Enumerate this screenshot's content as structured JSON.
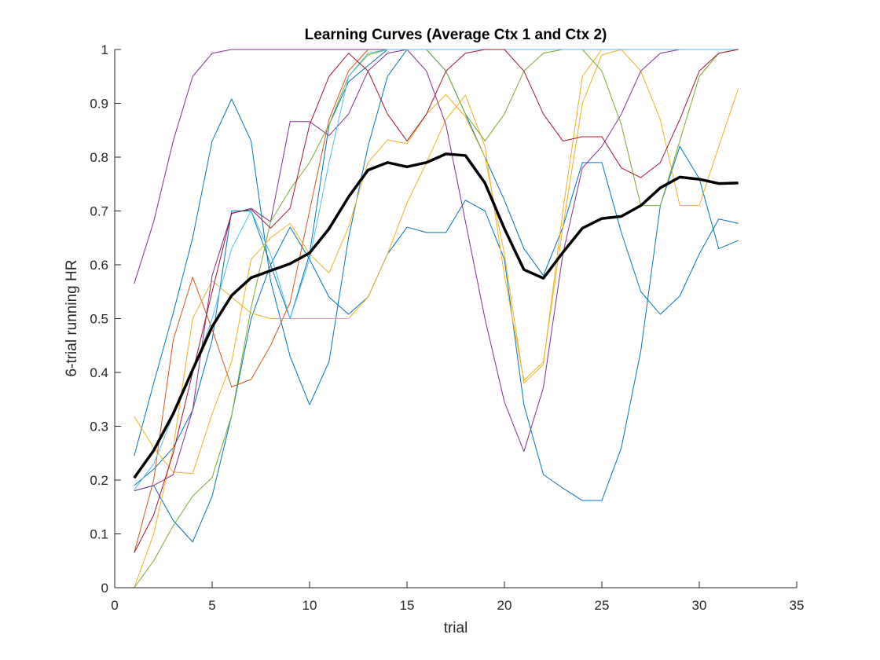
{
  "chart_data": {
    "type": "line",
    "title": "Learning Curves (Average Ctx 1 and Ctx 2)",
    "xlabel": "trial",
    "ylabel": "6-trial running HR",
    "xlim": [
      0,
      35
    ],
    "ylim": [
      0,
      1
    ],
    "xticks": [
      0,
      5,
      10,
      15,
      20,
      25,
      30,
      35
    ],
    "xtick_labels": [
      "0",
      "5",
      "10",
      "15",
      "20",
      "25",
      "30",
      "35"
    ],
    "yticks": [
      0,
      0.1,
      0.2,
      0.3,
      0.4,
      0.5,
      0.6,
      0.7,
      0.8,
      0.9,
      1
    ],
    "ytick_labels": [
      "0",
      "0.1",
      "0.2",
      "0.3",
      "0.4",
      "0.5",
      "0.6",
      "0.7",
      "0.8",
      "0.9",
      "1"
    ],
    "grid": false,
    "legend": false,
    "x": [
      1,
      2,
      3,
      4,
      5,
      6,
      7,
      8,
      9,
      10,
      11,
      12,
      13,
      14,
      15,
      16,
      17,
      18,
      19,
      20,
      21,
      22,
      23,
      24,
      25,
      26,
      27,
      28,
      29,
      30,
      31,
      32
    ],
    "series": [
      {
        "color": "#0072BD",
        "width": 1,
        "values": [
          0.245,
          0.38,
          0.51,
          0.65,
          0.83,
          0.908,
          0.83,
          0.57,
          0.43,
          0.34,
          0.42,
          0.65,
          0.82,
          0.95,
          1,
          1,
          1,
          1,
          1,
          1,
          1,
          1,
          1,
          1,
          1,
          1,
          1,
          1,
          1,
          1,
          1,
          1
        ]
      },
      {
        "color": "#0072BD",
        "width": 1,
        "values": [
          0.18,
          0.19,
          0.125,
          0.085,
          0.17,
          0.32,
          0.5,
          0.6,
          0.67,
          0.61,
          0.54,
          0.508,
          0.54,
          0.62,
          0.67,
          0.66,
          0.66,
          0.72,
          0.7,
          0.61,
          0.34,
          0.21,
          0.185,
          0.162,
          0.162,
          0.26,
          0.44,
          0.71,
          0.82,
          0.76,
          0.63,
          0.645
        ]
      },
      {
        "color": "#0072BD",
        "width": 1,
        "values": [
          0.19,
          0.22,
          0.26,
          0.33,
          0.46,
          0.7,
          0.7,
          0.6,
          0.5,
          0.62,
          0.86,
          0.94,
          0.97,
          1,
          1,
          1,
          0.96,
          0.88,
          0.8,
          0.72,
          0.63,
          0.58,
          0.67,
          0.79,
          0.79,
          0.66,
          0.55,
          0.508,
          0.542,
          0.62,
          0.685,
          0.677
        ]
      },
      {
        "color": "#D95319",
        "width": 1,
        "values": [
          0.065,
          0.2,
          0.46,
          0.577,
          0.48,
          0.373,
          0.387,
          0.45,
          0.53,
          0.7,
          0.87,
          0.96,
          1,
          1,
          1,
          1,
          1,
          1,
          1,
          1,
          1,
          1,
          1,
          1,
          1,
          1,
          1,
          1,
          1,
          1,
          1,
          1
        ]
      },
      {
        "color": "#EDB120",
        "width": 1,
        "values": [
          0.318,
          0.26,
          0.215,
          0.212,
          0.323,
          0.42,
          0.61,
          0.65,
          0.677,
          0.62,
          0.585,
          0.67,
          0.79,
          0.832,
          0.825,
          0.88,
          0.916,
          0.875,
          0.8,
          0.62,
          0.38,
          0.415,
          0.7,
          0.95,
          1,
          1,
          1,
          1,
          1,
          1,
          1,
          1
        ]
      },
      {
        "color": "#EDB120",
        "width": 1,
        "values": [
          0,
          0.1,
          0.26,
          0.5,
          0.57,
          0.54,
          0.51,
          0.5,
          0.5,
          0.5,
          0.5,
          0.5,
          0.54,
          0.62,
          0.715,
          0.79,
          0.87,
          0.915,
          0.82,
          0.58,
          0.385,
          0.42,
          0.67,
          0.9,
          0.99,
          1,
          0.96,
          0.87,
          0.71,
          0.71,
          0.82,
          0.927
        ]
      },
      {
        "color": "#7E2F8E",
        "width": 1,
        "values": [
          0.565,
          0.68,
          0.83,
          0.95,
          0.993,
          1,
          1,
          1,
          1,
          1,
          1,
          1,
          1,
          1,
          1,
          1,
          1,
          1,
          1,
          1,
          1,
          1,
          1,
          1,
          1,
          1,
          1,
          1,
          1,
          1,
          1,
          1
        ]
      },
      {
        "color": "#7E2F8E",
        "width": 1,
        "values": [
          0.18,
          0.19,
          0.21,
          0.33,
          0.58,
          0.695,
          0.705,
          0.68,
          0.866,
          0.866,
          0.84,
          0.88,
          0.96,
          0.993,
          1,
          0.96,
          0.86,
          0.68,
          0.5,
          0.345,
          0.253,
          0.372,
          0.62,
          0.78,
          0.82,
          0.88,
          0.96,
          0.993,
          1,
          1,
          1,
          1
        ]
      },
      {
        "color": "#77AC30",
        "width": 1,
        "values": [
          0,
          0.05,
          0.115,
          0.17,
          0.205,
          0.32,
          0.52,
          0.68,
          0.74,
          0.79,
          0.86,
          0.95,
          0.99,
          1,
          1,
          1,
          0.96,
          0.88,
          0.83,
          0.88,
          0.96,
          0.993,
          1,
          1,
          0.96,
          0.86,
          0.71,
          0.71,
          0.83,
          0.95,
          0.993,
          1
        ]
      },
      {
        "color": "#4DBEEE",
        "width": 1,
        "values": [
          0.182,
          0.23,
          0.32,
          0.4,
          0.5,
          0.63,
          0.7,
          0.62,
          0.5,
          0.61,
          0.79,
          0.95,
          0.993,
          1,
          1,
          1,
          1,
          1,
          1,
          1,
          1,
          1,
          1,
          1,
          1,
          1,
          1,
          1,
          1,
          1,
          1,
          1
        ]
      },
      {
        "color": "#A2142F",
        "width": 1,
        "values": [
          0.065,
          0.135,
          0.25,
          0.4,
          0.55,
          0.696,
          0.703,
          0.668,
          0.705,
          0.86,
          0.95,
          0.993,
          0.96,
          0.88,
          0.83,
          0.88,
          0.96,
          0.993,
          1,
          1,
          0.96,
          0.88,
          0.83,
          0.838,
          0.838,
          0.78,
          0.762,
          0.79,
          0.87,
          0.96,
          0.993,
          1
        ]
      },
      {
        "color": "#000000",
        "width": 3.5,
        "values": [
          0.204,
          0.255,
          0.323,
          0.405,
          0.485,
          0.543,
          0.576,
          0.589,
          0.602,
          0.622,
          0.667,
          0.726,
          0.776,
          0.79,
          0.782,
          0.79,
          0.806,
          0.803,
          0.752,
          0.667,
          0.591,
          0.575,
          0.623,
          0.668,
          0.686,
          0.69,
          0.71,
          0.743,
          0.763,
          0.759,
          0.751,
          0.752
        ]
      }
    ]
  }
}
